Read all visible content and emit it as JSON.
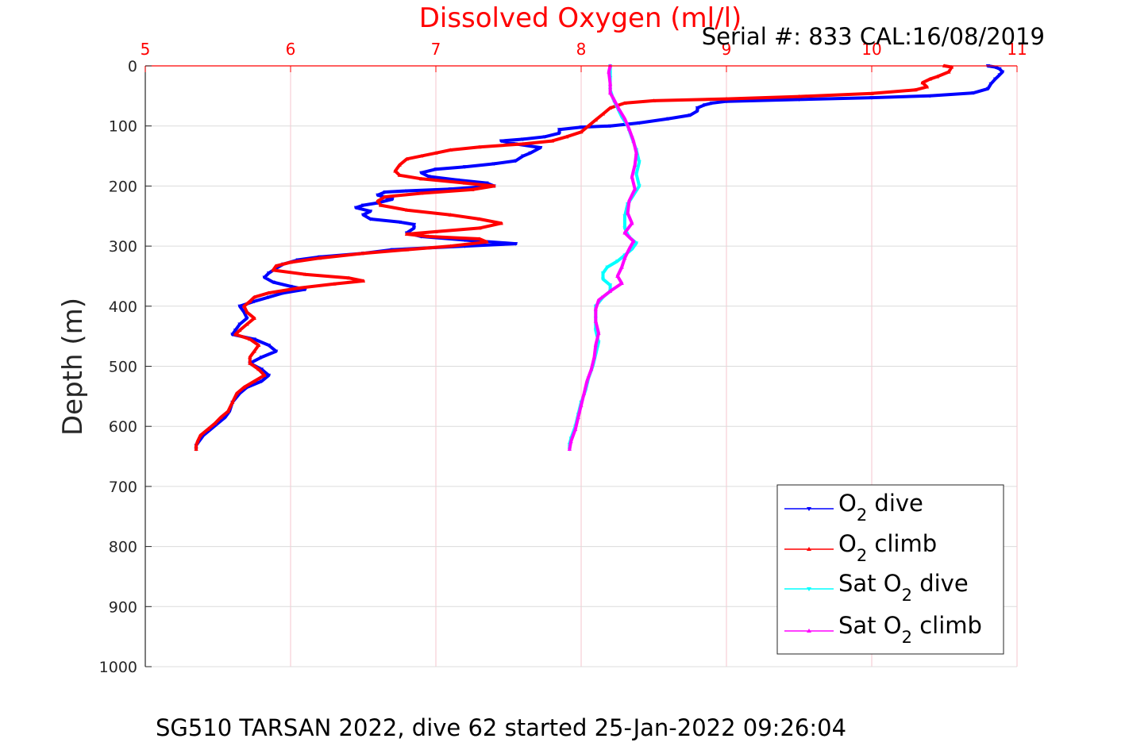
{
  "chart_data": {
    "type": "line",
    "title": "Dissolved Oxygen (ml/l)",
    "subtitle": "Serial #: 833  CAL:16/08/2019",
    "caption": "SG510 TARSAN 2022, dive 62 started 25-Jan-2022 09:26:04",
    "xlabel": "",
    "ylabel": "Depth (m)",
    "xlim": [
      5,
      11
    ],
    "ylim": [
      0,
      1000
    ],
    "y_reversed": true,
    "x_axis_position": "top",
    "x_ticks": [
      "5",
      "6",
      "7",
      "8",
      "9",
      "10",
      "11"
    ],
    "y_ticks": [
      "0",
      "100",
      "200",
      "300",
      "400",
      "500",
      "600",
      "700",
      "800",
      "900",
      "1000"
    ],
    "grid": true,
    "legend_position": "bottom-right",
    "colors": {
      "o2_dive": "#0000ff",
      "o2_climb": "#ff0000",
      "sat_dive": "#00ffff",
      "sat_climb": "#ff00ff",
      "title": "#ff0000",
      "x_ticks": "#ff0000",
      "grid_x": "#f4c6cc",
      "grid_y": "#dcdcdc"
    },
    "legend": [
      {
        "pre": "O",
        "sub": "2",
        "post": " dive"
      },
      {
        "pre": "O",
        "sub": "2",
        "post": " climb"
      },
      {
        "pre": "Sat O",
        "sub": "2",
        "post": " dive"
      },
      {
        "pre": "Sat O",
        "sub": "2",
        "post": " climb"
      }
    ],
    "series": [
      {
        "key": "o2_dive",
        "marker": "triangle-down",
        "points": [
          [
            10.8,
            0
          ],
          [
            10.85,
            2
          ],
          [
            10.88,
            5
          ],
          [
            10.9,
            10
          ],
          [
            10.88,
            15
          ],
          [
            10.85,
            22
          ],
          [
            10.82,
            30
          ],
          [
            10.8,
            38
          ],
          [
            10.7,
            45
          ],
          [
            10.4,
            50
          ],
          [
            10.0,
            53
          ],
          [
            9.5,
            56
          ],
          [
            9.0,
            59
          ],
          [
            8.9,
            62
          ],
          [
            8.85,
            65
          ],
          [
            8.8,
            70
          ],
          [
            8.8,
            75
          ],
          [
            8.75,
            82
          ],
          [
            8.6,
            88
          ],
          [
            8.4,
            95
          ],
          [
            8.2,
            100
          ],
          [
            8.0,
            102
          ],
          [
            7.85,
            106
          ],
          [
            7.85,
            112
          ],
          [
            7.75,
            118
          ],
          [
            7.6,
            122
          ],
          [
            7.45,
            125
          ],
          [
            7.55,
            130
          ],
          [
            7.72,
            136
          ],
          [
            7.65,
            145
          ],
          [
            7.6,
            150
          ],
          [
            7.55,
            158
          ],
          [
            7.4,
            163
          ],
          [
            7.2,
            168
          ],
          [
            7.0,
            172
          ],
          [
            6.9,
            178
          ],
          [
            6.95,
            184
          ],
          [
            7.15,
            190
          ],
          [
            7.35,
            195
          ],
          [
            7.4,
            200
          ],
          [
            7.1,
            205
          ],
          [
            6.8,
            208
          ],
          [
            6.65,
            210
          ],
          [
            6.6,
            215
          ],
          [
            6.7,
            222
          ],
          [
            6.6,
            228
          ],
          [
            6.5,
            232
          ],
          [
            6.45,
            236
          ],
          [
            6.55,
            242
          ],
          [
            6.5,
            248
          ],
          [
            6.55,
            255
          ],
          [
            6.75,
            260
          ],
          [
            6.85,
            264
          ],
          [
            6.85,
            270
          ],
          [
            6.8,
            278
          ],
          [
            6.9,
            284
          ],
          [
            7.2,
            290
          ],
          [
            7.55,
            296
          ],
          [
            7.2,
            300
          ],
          [
            6.7,
            306
          ],
          [
            6.5,
            312
          ],
          [
            6.2,
            318
          ],
          [
            6.05,
            323
          ],
          [
            5.95,
            330
          ],
          [
            5.9,
            337
          ],
          [
            5.85,
            345
          ],
          [
            5.82,
            352
          ],
          [
            5.88,
            360
          ],
          [
            6.0,
            367
          ],
          [
            6.1,
            372
          ],
          [
            5.95,
            378
          ],
          [
            5.85,
            385
          ],
          [
            5.75,
            392
          ],
          [
            5.65,
            400
          ],
          [
            5.68,
            410
          ],
          [
            5.7,
            420
          ],
          [
            5.65,
            430
          ],
          [
            5.62,
            440
          ],
          [
            5.6,
            447
          ],
          [
            5.75,
            455
          ],
          [
            5.85,
            465
          ],
          [
            5.9,
            475
          ],
          [
            5.8,
            485
          ],
          [
            5.72,
            495
          ],
          [
            5.8,
            505
          ],
          [
            5.85,
            515
          ],
          [
            5.8,
            525
          ],
          [
            5.7,
            535
          ],
          [
            5.65,
            545
          ],
          [
            5.6,
            560
          ],
          [
            5.58,
            575
          ],
          [
            5.55,
            585
          ],
          [
            5.5,
            595
          ],
          [
            5.45,
            605
          ],
          [
            5.4,
            615
          ],
          [
            5.37,
            625
          ],
          [
            5.35,
            632
          ],
          [
            5.35,
            638
          ]
        ]
      },
      {
        "key": "o2_climb",
        "marker": "triangle-up",
        "points": [
          [
            10.5,
            0
          ],
          [
            10.55,
            2
          ],
          [
            10.53,
            10
          ],
          [
            10.45,
            18
          ],
          [
            10.4,
            22
          ],
          [
            10.35,
            28
          ],
          [
            10.38,
            35
          ],
          [
            10.3,
            40
          ],
          [
            10.0,
            46
          ],
          [
            9.5,
            51
          ],
          [
            9.0,
            55
          ],
          [
            8.5,
            58
          ],
          [
            8.3,
            62
          ],
          [
            8.2,
            70
          ],
          [
            8.15,
            80
          ],
          [
            8.1,
            90
          ],
          [
            8.05,
            100
          ],
          [
            8.0,
            110
          ],
          [
            7.9,
            118
          ],
          [
            7.8,
            125
          ],
          [
            7.6,
            130
          ],
          [
            7.3,
            135
          ],
          [
            7.1,
            140
          ],
          [
            7.0,
            145
          ],
          [
            6.9,
            150
          ],
          [
            6.8,
            155
          ],
          [
            6.75,
            165
          ],
          [
            6.72,
            175
          ],
          [
            6.75,
            182
          ],
          [
            6.9,
            188
          ],
          [
            7.2,
            195
          ],
          [
            7.4,
            200
          ],
          [
            7.25,
            206
          ],
          [
            6.9,
            212
          ],
          [
            6.65,
            218
          ],
          [
            6.6,
            225
          ],
          [
            6.62,
            232
          ],
          [
            6.8,
            240
          ],
          [
            7.1,
            248
          ],
          [
            7.3,
            255
          ],
          [
            7.45,
            262
          ],
          [
            7.3,
            270
          ],
          [
            7.0,
            276
          ],
          [
            6.8,
            280
          ],
          [
            6.95,
            284
          ],
          [
            7.3,
            288
          ],
          [
            7.35,
            293
          ],
          [
            7.1,
            300
          ],
          [
            6.8,
            306
          ],
          [
            6.5,
            312
          ],
          [
            6.2,
            320
          ],
          [
            6.0,
            327
          ],
          [
            5.9,
            333
          ],
          [
            5.88,
            340
          ],
          [
            6.1,
            347
          ],
          [
            6.4,
            353
          ],
          [
            6.5,
            358
          ],
          [
            6.3,
            363
          ],
          [
            6.05,
            370
          ],
          [
            5.85,
            378
          ],
          [
            5.75,
            385
          ],
          [
            5.72,
            392
          ],
          [
            5.68,
            400
          ],
          [
            5.7,
            410
          ],
          [
            5.75,
            420
          ],
          [
            5.7,
            430
          ],
          [
            5.65,
            440
          ],
          [
            5.62,
            447
          ],
          [
            5.72,
            455
          ],
          [
            5.78,
            465
          ],
          [
            5.75,
            475
          ],
          [
            5.72,
            485
          ],
          [
            5.72,
            495
          ],
          [
            5.78,
            505
          ],
          [
            5.82,
            515
          ],
          [
            5.75,
            525
          ],
          [
            5.68,
            535
          ],
          [
            5.63,
            545
          ],
          [
            5.6,
            560
          ],
          [
            5.57,
            575
          ],
          [
            5.52,
            585
          ],
          [
            5.48,
            595
          ],
          [
            5.43,
            605
          ],
          [
            5.38,
            615
          ],
          [
            5.36,
            625
          ],
          [
            5.35,
            632
          ],
          [
            5.35,
            638
          ]
        ]
      },
      {
        "key": "sat_dive",
        "marker": "triangle-down",
        "points": [
          [
            8.2,
            0
          ],
          [
            8.2,
            20
          ],
          [
            8.2,
            40
          ],
          [
            8.22,
            55
          ],
          [
            8.25,
            70
          ],
          [
            8.28,
            85
          ],
          [
            8.32,
            100
          ],
          [
            8.35,
            120
          ],
          [
            8.38,
            140
          ],
          [
            8.4,
            160
          ],
          [
            8.38,
            180
          ],
          [
            8.4,
            200
          ],
          [
            8.36,
            215
          ],
          [
            8.32,
            230
          ],
          [
            8.3,
            250
          ],
          [
            8.3,
            270
          ],
          [
            8.33,
            285
          ],
          [
            8.38,
            295
          ],
          [
            8.35,
            305
          ],
          [
            8.3,
            315
          ],
          [
            8.25,
            325
          ],
          [
            8.18,
            335
          ],
          [
            8.15,
            345
          ],
          [
            8.15,
            355
          ],
          [
            8.2,
            365
          ],
          [
            8.2,
            375
          ],
          [
            8.15,
            385
          ],
          [
            8.1,
            400
          ],
          [
            8.1,
            420
          ],
          [
            8.1,
            440
          ],
          [
            8.12,
            460
          ],
          [
            8.1,
            480
          ],
          [
            8.08,
            500
          ],
          [
            8.05,
            520
          ],
          [
            8.03,
            540
          ],
          [
            8.0,
            560
          ],
          [
            7.98,
            580
          ],
          [
            7.96,
            600
          ],
          [
            7.93,
            620
          ],
          [
            7.92,
            630
          ],
          [
            7.92,
            638
          ]
        ]
      },
      {
        "key": "sat_climb",
        "marker": "triangle-up",
        "points": [
          [
            8.2,
            0
          ],
          [
            8.19,
            10
          ],
          [
            8.2,
            30
          ],
          [
            8.2,
            45
          ],
          [
            8.23,
            58
          ],
          [
            8.26,
            72
          ],
          [
            8.3,
            88
          ],
          [
            8.33,
            105
          ],
          [
            8.36,
            125
          ],
          [
            8.38,
            145
          ],
          [
            8.37,
            165
          ],
          [
            8.35,
            185
          ],
          [
            8.37,
            205
          ],
          [
            8.33,
            225
          ],
          [
            8.32,
            245
          ],
          [
            8.35,
            262
          ],
          [
            8.3,
            278
          ],
          [
            8.36,
            292
          ],
          [
            8.33,
            305
          ],
          [
            8.3,
            320
          ],
          [
            8.28,
            335
          ],
          [
            8.25,
            350
          ],
          [
            8.28,
            362
          ],
          [
            8.2,
            375
          ],
          [
            8.12,
            390
          ],
          [
            8.1,
            405
          ],
          [
            8.1,
            425
          ],
          [
            8.12,
            445
          ],
          [
            8.1,
            465
          ],
          [
            8.09,
            485
          ],
          [
            8.07,
            505
          ],
          [
            8.04,
            525
          ],
          [
            8.02,
            545
          ],
          [
            8.0,
            565
          ],
          [
            7.98,
            585
          ],
          [
            7.96,
            605
          ],
          [
            7.93,
            625
          ],
          [
            7.92,
            638
          ]
        ]
      }
    ]
  }
}
